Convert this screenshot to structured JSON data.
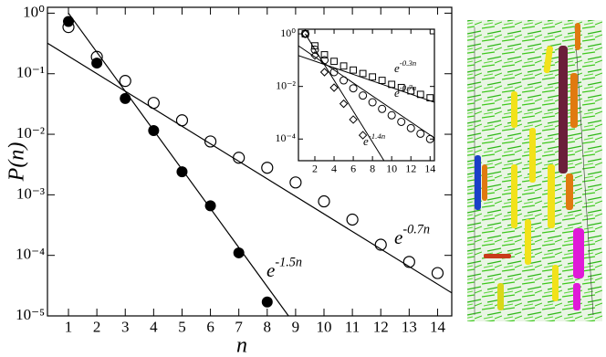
{
  "chart_data": [
    {
      "type": "scatter",
      "x_label": "n",
      "y_label": "P(n)",
      "xlim": [
        0.26,
        14.5
      ],
      "xticks": [
        1,
        2,
        3,
        4,
        5,
        6,
        7,
        8,
        9,
        10,
        11,
        12,
        13,
        14
      ],
      "ylim": [
        1e-05,
        1.25
      ],
      "log_y": true,
      "yticks": [
        {
          "value": 1,
          "label": "10⁰"
        },
        {
          "value": 0.1,
          "label": "10⁻¹"
        },
        {
          "value": 0.01,
          "label": "10⁻²"
        },
        {
          "value": 0.001,
          "label": "10⁻³"
        },
        {
          "value": 0.0001,
          "label": "10⁻⁴"
        },
        {
          "value": 1e-05,
          "label": "10⁻⁵"
        }
      ],
      "series": [
        {
          "marker": "filled-circle",
          "color": "#000000",
          "x": [
            1,
            2,
            3,
            4,
            5,
            6,
            7,
            8
          ],
          "values": [
            0.73,
            0.15,
            0.039,
            0.0115,
            0.0024,
            0.00066,
            0.00011,
            1.7e-05
          ]
        },
        {
          "marker": "open-circle",
          "color": "#000000",
          "x": [
            1,
            2,
            3,
            4,
            5,
            6,
            7,
            8,
            9,
            10,
            11,
            12,
            13,
            14
          ],
          "values": [
            0.59,
            0.19,
            0.076,
            0.033,
            0.017,
            0.0076,
            0.0041,
            0.0028,
            0.0016,
            0.00078,
            0.00039,
            0.00015,
            7.8e-05,
            5.1e-05
          ]
        },
        {
          "marker": "line",
          "color": "#000000",
          "x": [
            1,
            8.75
          ],
          "values": [
            1,
            1e-05
          ]
        },
        {
          "marker": "line",
          "color": "#000000",
          "x": [
            0.26,
            14.5
          ],
          "values": [
            0.32,
            2.4e-05
          ]
        }
      ],
      "annotations": [
        {
          "text": "e",
          "superscript": "-1.5n"
        },
        {
          "text": "e",
          "superscript": "-0.7n"
        }
      ]
    },
    {
      "type": "scatter",
      "xlim": [
        0.29,
        14.45
      ],
      "xticks": [
        2,
        4,
        6,
        8,
        10,
        12,
        14
      ],
      "ylim": [
        1.5e-05,
        1.5
      ],
      "log_y": true,
      "yticks": [
        {
          "value": 1,
          "label": "10⁰"
        },
        {
          "value": 0.01,
          "label": "10⁻²"
        },
        {
          "value": 0.0001,
          "label": "10⁻⁴"
        }
      ],
      "series": [
        {
          "marker": "open-square",
          "color": "#000000",
          "x": [
            1,
            2,
            3,
            4,
            5,
            6,
            7,
            8,
            9,
            10,
            11,
            12,
            13,
            14
          ],
          "values": [
            1.0,
            0.35,
            0.16,
            0.09,
            0.06,
            0.042,
            0.031,
            0.023,
            0.017,
            0.012,
            0.0091,
            0.0068,
            0.005,
            0.0037
          ]
        },
        {
          "marker": "open-circle",
          "color": "#000000",
          "x": [
            1,
            2,
            3,
            4,
            5,
            6,
            7,
            8,
            9,
            10,
            11,
            12,
            13,
            14
          ],
          "values": [
            1.0,
            0.25,
            0.1,
            0.035,
            0.017,
            0.0085,
            0.0045,
            0.0025,
            0.0014,
            0.0008,
            0.00045,
            0.00026,
            0.00016,
            0.0001
          ]
        },
        {
          "marker": "open-diamond",
          "color": "#000000",
          "x": [
            1,
            2,
            3,
            4,
            5,
            6,
            7
          ],
          "values": [
            1.0,
            0.15,
            0.035,
            0.009,
            0.0022,
            0.00055,
            0.00014
          ]
        },
        {
          "marker": "line",
          "color": "#000000",
          "x": [
            0.29,
            14.45
          ],
          "values": [
            0.15,
            0.0025
          ]
        },
        {
          "marker": "line",
          "color": "#000000",
          "x": [
            0.29,
            14.45
          ],
          "values": [
            0.35,
            0.00011
          ]
        },
        {
          "marker": "line",
          "color": "#000000",
          "x": [
            1,
            9.2
          ],
          "values": [
            1,
            1.5e-05
          ]
        }
      ],
      "annotations": [
        {
          "text": "e",
          "superscript": "-0.3n"
        },
        {
          "text": "e",
          "superscript": "-0.7n"
        },
        {
          "text": "e",
          "superscript": "-1.4n"
        }
      ]
    }
  ]
}
